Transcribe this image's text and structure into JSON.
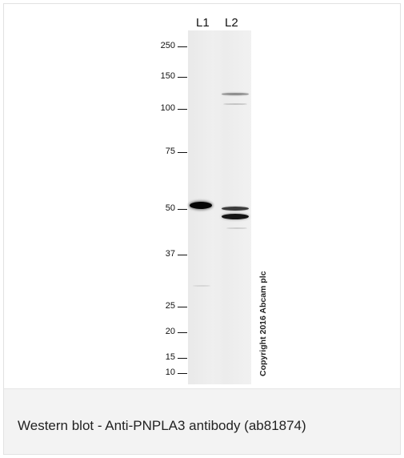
{
  "blot": {
    "lanes": [
      {
        "label": "L1"
      },
      {
        "label": "L2"
      }
    ],
    "markers": [
      "250",
      "150",
      "100",
      "75",
      "50",
      "37",
      "25",
      "20",
      "15",
      "10"
    ],
    "copyright": "Copyright 2016 Abcam plc"
  },
  "caption": "Western blot - Anti-PNPLA3 antibody (ab81874)"
}
